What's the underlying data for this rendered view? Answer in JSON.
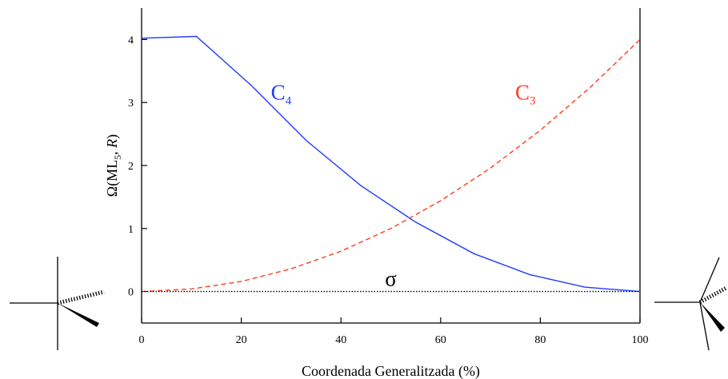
{
  "chart_data": {
    "type": "line",
    "xlabel": "Coordenada Generalitzada (%)",
    "ylabel": {
      "prefix": "Ω(ML",
      "sub": "5",
      "mid": ", ",
      "italic": "R",
      "suffix": ")"
    },
    "xlim": [
      0,
      100
    ],
    "ylim": [
      -0.5,
      4.5
    ],
    "xticks": [
      0,
      20,
      40,
      60,
      80,
      100
    ],
    "yticks": [
      0,
      1,
      2,
      3,
      4
    ],
    "grid": false,
    "series": [
      {
        "name": {
          "main": "C",
          "sub": "4"
        },
        "color": "#1f3bff",
        "style": "solid",
        "x": [
          0,
          11,
          22,
          33,
          44,
          55,
          66.7,
          77.8,
          88.9,
          100
        ],
        "y": [
          4.02,
          4.05,
          3.27,
          2.4,
          1.68,
          1.1,
          0.6,
          0.27,
          0.07,
          0.0
        ]
      },
      {
        "name": {
          "main": "C",
          "sub": "3"
        },
        "color": "#ff3b1f",
        "style": "dashed",
        "x": [
          0,
          10,
          20,
          30,
          40,
          50,
          60,
          70,
          80,
          90,
          100
        ],
        "y": [
          0.0,
          0.04,
          0.16,
          0.36,
          0.64,
          1.0,
          1.44,
          1.96,
          2.56,
          3.24,
          4.0
        ]
      },
      {
        "name": {
          "main": "σ",
          "sub": ""
        },
        "color": "#000000",
        "style": "dotted",
        "x": [
          0,
          100
        ],
        "y": [
          0,
          0
        ]
      }
    ]
  }
}
